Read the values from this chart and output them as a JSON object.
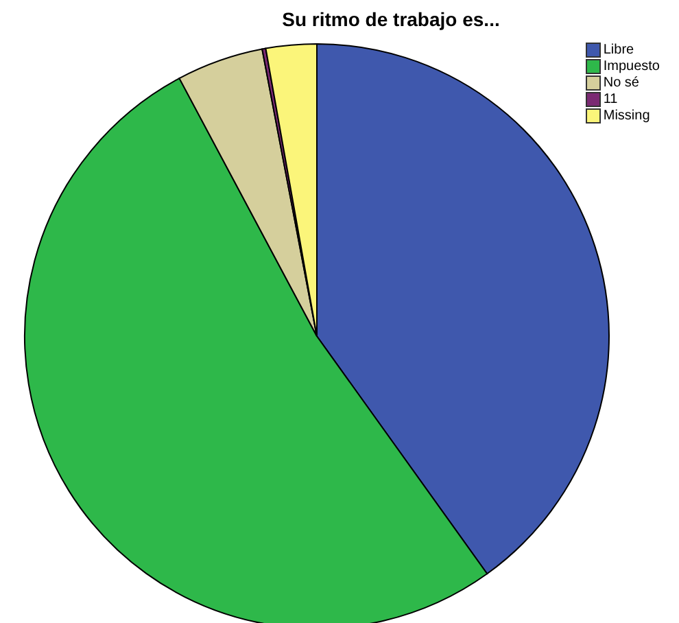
{
  "chart_data": {
    "type": "pie",
    "title": "Su ritmo de trabajo es...",
    "categories": [
      "Libre",
      "Impuesto",
      "No sé",
      "11",
      "Missing"
    ],
    "values": [
      40.1,
      52.1,
      4.8,
      0.2,
      2.8
    ],
    "colors": [
      "#3f58ad",
      "#2eb84a",
      "#d5cf9c",
      "#7b2a73",
      "#fbf57a"
    ],
    "legend": "top right"
  }
}
